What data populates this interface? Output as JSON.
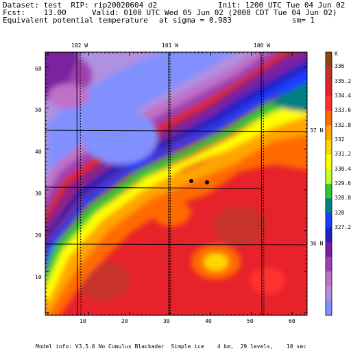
{
  "header": {
    "line1_left": "Dataset: test  RIP: rip20020604 d2",
    "line1_right": "Init: 1200 UTC Tue 04 Jun 02",
    "line2_left": "Fcst:    13.00",
    "line2_right": "Valid: 0100 UTC Wed 05 Jun 02 (2000 CDT Tue 04 Jun 02)",
    "line3_left": "Equivalent potential temperature",
    "line3_mid": "at sigma = 0.983",
    "line3_right": "sm= 1"
  },
  "map": {
    "longitude_labels": [
      "102 W",
      "101 W",
      "100 W"
    ],
    "latitude_labels": [
      "37 N",
      "36 N"
    ],
    "y_ticks": [
      "10",
      "20",
      "30",
      "40",
      "50",
      "60"
    ],
    "x_ticks": [
      "10",
      "20",
      "30",
      "40",
      "50",
      "60"
    ],
    "station_markers": 2
  },
  "legend": {
    "unit": "K",
    "labels": [
      "336",
      "335.2",
      "334.4",
      "333.6",
      "332.8",
      "332",
      "331.2",
      "330.4",
      "329.6",
      "328.8",
      "328",
      "327.2"
    ],
    "colors": [
      "#8b4513",
      "#c8302a",
      "#e8222a",
      "#ff3030",
      "#ff6a00",
      "#ffa500",
      "#ffd700",
      "#ffff00",
      "#c0ff30",
      "#30c830",
      "#008080",
      "#1a3cff",
      "#2020c8",
      "#7a20a0",
      "#a040b0",
      "#c070c8",
      "#b090e0",
      "#8090ff"
    ]
  },
  "footer": {
    "model_info": "Model info: V3.5.0 No Cumulus Blackadar  Simple ice    4 km,  29 levels,    10 sec"
  }
}
